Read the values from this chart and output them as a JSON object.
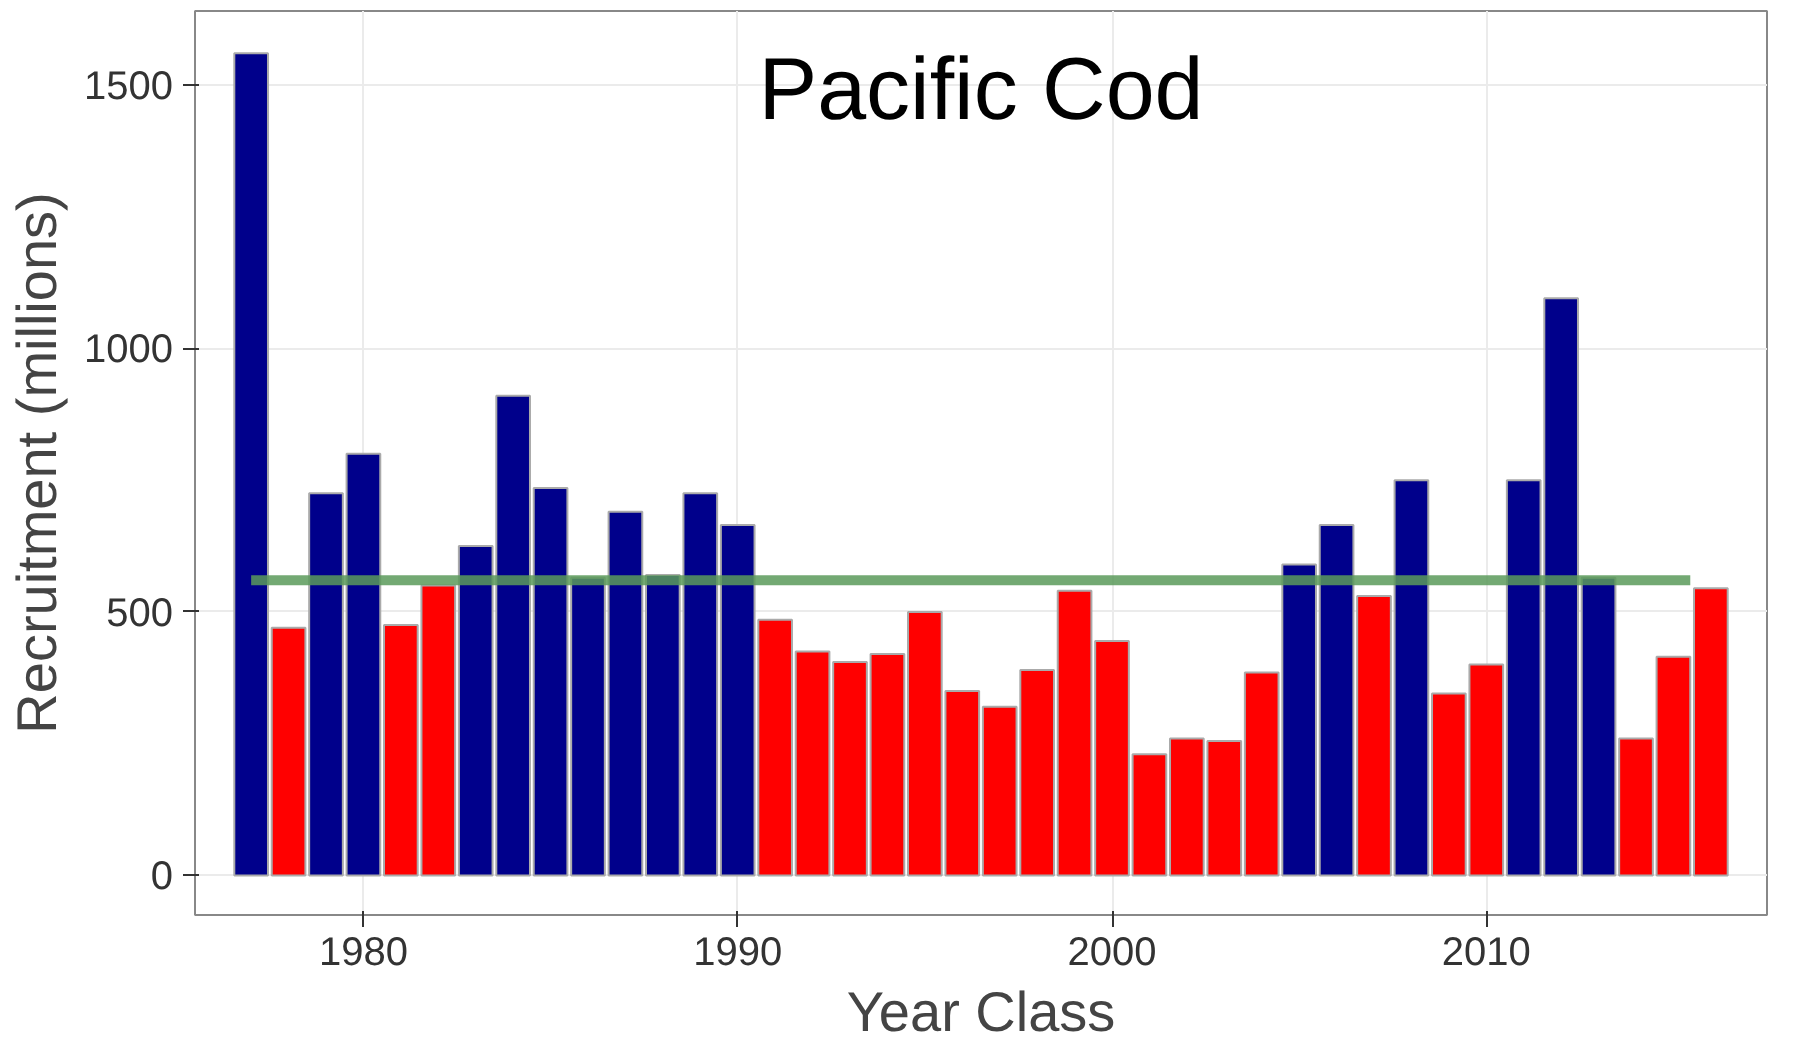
{
  "chart_data": {
    "type": "bar",
    "title": "Pacific Cod",
    "xlabel": "Year Class",
    "ylabel": "Recruitment (millions)",
    "x": [
      1977,
      1978,
      1979,
      1980,
      1981,
      1982,
      1983,
      1984,
      1985,
      1986,
      1987,
      1988,
      1989,
      1990,
      1991,
      1992,
      1993,
      1994,
      1995,
      1996,
      1997,
      1998,
      1999,
      2000,
      2001,
      2002,
      2003,
      2004,
      2005,
      2006,
      2007,
      2008,
      2009,
      2010,
      2011,
      2012,
      2013,
      2014,
      2015,
      2016
    ],
    "values": [
      1560,
      470,
      725,
      800,
      475,
      550,
      625,
      910,
      735,
      565,
      690,
      570,
      725,
      665,
      485,
      425,
      405,
      420,
      500,
      350,
      320,
      390,
      540,
      445,
      230,
      260,
      255,
      385,
      590,
      665,
      530,
      750,
      345,
      400,
      750,
      1095,
      565,
      260,
      415,
      545
    ],
    "colors": [
      "#00008b",
      "#ff0000",
      "#00008b",
      "#00008b",
      "#ff0000",
      "#ff0000",
      "#00008b",
      "#00008b",
      "#00008b",
      "#00008b",
      "#00008b",
      "#00008b",
      "#00008b",
      "#00008b",
      "#ff0000",
      "#ff0000",
      "#ff0000",
      "#ff0000",
      "#ff0000",
      "#ff0000",
      "#ff0000",
      "#ff0000",
      "#ff0000",
      "#ff0000",
      "#ff0000",
      "#ff0000",
      "#ff0000",
      "#ff0000",
      "#00008b",
      "#00008b",
      "#ff0000",
      "#00008b",
      "#ff0000",
      "#ff0000",
      "#00008b",
      "#00008b",
      "#00008b",
      "#ff0000",
      "#ff0000",
      "#ff0000"
    ],
    "xlim": [
      1975.5,
      2017.5
    ],
    "ylim": [
      -75,
      1640
    ],
    "xticks": [
      1980,
      1990,
      2000,
      2010
    ],
    "yticks": [
      0,
      500,
      1000,
      1500
    ],
    "grid": true,
    "ref_lines": [
      {
        "axis": "y",
        "value": 560,
        "label": null,
        "color": "#5a9a5a"
      }
    ]
  }
}
